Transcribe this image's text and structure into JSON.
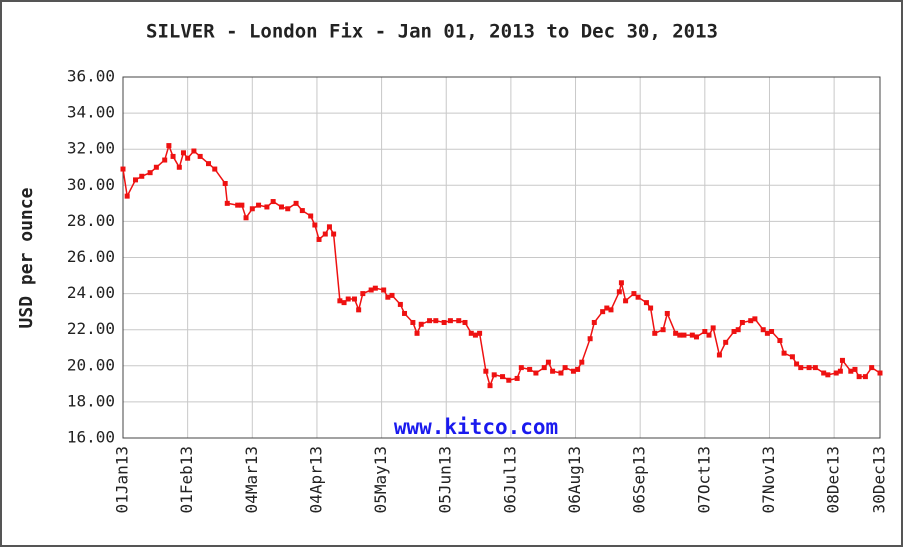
{
  "chart_data": {
    "type": "line",
    "title": "SILVER - London Fix - Jan 01, 2013 to Dec 30, 2013",
    "y_label": "USD per ounce",
    "annotation": "www.kitco.com",
    "grid": true,
    "xlim": [
      "2013-01-01",
      "2013-12-30"
    ],
    "xticks": [
      {
        "value": "2013-01-01",
        "label": "01Jan13"
      },
      {
        "value": "2013-02-01",
        "label": "01Feb13"
      },
      {
        "value": "2013-03-04",
        "label": "04Mar13"
      },
      {
        "value": "2013-04-04",
        "label": "04Apr13"
      },
      {
        "value": "2013-05-05",
        "label": "05May13"
      },
      {
        "value": "2013-06-05",
        "label": "05Jun13"
      },
      {
        "value": "2013-07-06",
        "label": "06Jul13"
      },
      {
        "value": "2013-08-06",
        "label": "06Aug13"
      },
      {
        "value": "2013-09-06",
        "label": "06Sep13"
      },
      {
        "value": "2013-10-07",
        "label": "07Oct13"
      },
      {
        "value": "2013-11-07",
        "label": "07Nov13"
      },
      {
        "value": "2013-12-08",
        "label": "08Dec13"
      },
      {
        "value": "2013-12-30",
        "label": "30Dec13"
      }
    ],
    "ylim": [
      16,
      36
    ],
    "yticks": [
      {
        "value": 16,
        "label": "16.00"
      },
      {
        "value": 18,
        "label": "18.00"
      },
      {
        "value": 20,
        "label": "20.00"
      },
      {
        "value": 22,
        "label": "22.00"
      },
      {
        "value": 24,
        "label": "24.00"
      },
      {
        "value": 26,
        "label": "26.00"
      },
      {
        "value": 28,
        "label": "28.00"
      },
      {
        "value": 30,
        "label": "30.00"
      },
      {
        "value": 32,
        "label": "32.00"
      },
      {
        "value": 34,
        "label": "34.00"
      },
      {
        "value": 36,
        "label": "36.00"
      }
    ],
    "x": [
      "2013-01-01",
      "2013-01-03",
      "2013-01-07",
      "2013-01-10",
      "2013-01-14",
      "2013-01-17",
      "2013-01-21",
      "2013-01-23",
      "2013-01-25",
      "2013-01-28",
      "2013-01-30",
      "2013-02-01",
      "2013-02-04",
      "2013-02-07",
      "2013-02-11",
      "2013-02-14",
      "2013-02-19",
      "2013-02-20",
      "2013-02-25",
      "2013-02-27",
      "2013-03-01",
      "2013-03-04",
      "2013-03-07",
      "2013-03-11",
      "2013-03-14",
      "2013-03-18",
      "2013-03-21",
      "2013-03-25",
      "2013-03-28",
      "2013-04-01",
      "2013-04-03",
      "2013-04-05",
      "2013-04-08",
      "2013-04-10",
      "2013-04-12",
      "2013-04-15",
      "2013-04-17",
      "2013-04-19",
      "2013-04-22",
      "2013-04-24",
      "2013-04-26",
      "2013-04-30",
      "2013-05-02",
      "2013-05-06",
      "2013-05-08",
      "2013-05-10",
      "2013-05-14",
      "2013-05-16",
      "2013-05-20",
      "2013-05-22",
      "2013-05-24",
      "2013-05-28",
      "2013-05-31",
      "2013-06-04",
      "2013-06-07",
      "2013-06-11",
      "2013-06-14",
      "2013-06-17",
      "2013-06-19",
      "2013-06-21",
      "2013-06-24",
      "2013-06-26",
      "2013-06-28",
      "2013-07-02",
      "2013-07-05",
      "2013-07-09",
      "2013-07-11",
      "2013-07-15",
      "2013-07-18",
      "2013-07-22",
      "2013-07-24",
      "2013-07-26",
      "2013-07-30",
      "2013-08-01",
      "2013-08-05",
      "2013-08-07",
      "2013-08-09",
      "2013-08-13",
      "2013-08-15",
      "2013-08-19",
      "2013-08-21",
      "2013-08-23",
      "2013-08-27",
      "2013-08-28",
      "2013-08-30",
      "2013-09-03",
      "2013-09-05",
      "2013-09-09",
      "2013-09-11",
      "2013-09-13",
      "2013-09-17",
      "2013-09-19",
      "2013-09-23",
      "2013-09-25",
      "2013-09-27",
      "2013-10-01",
      "2013-10-03",
      "2013-10-07",
      "2013-10-09",
      "2013-10-11",
      "2013-10-14",
      "2013-10-17",
      "2013-10-21",
      "2013-10-23",
      "2013-10-25",
      "2013-10-29",
      "2013-10-31",
      "2013-11-04",
      "2013-11-06",
      "2013-11-08",
      "2013-11-12",
      "2013-11-14",
      "2013-11-18",
      "2013-11-20",
      "2013-11-22",
      "2013-11-26",
      "2013-11-29",
      "2013-12-03",
      "2013-12-05",
      "2013-12-09",
      "2013-12-11",
      "2013-12-12",
      "2013-12-16",
      "2013-12-18",
      "2013-12-20",
      "2013-12-23",
      "2013-12-26",
      "2013-12-30"
    ],
    "series": [
      {
        "name": "SILVER",
        "color": "#ee1111",
        "values": [
          30.9,
          29.4,
          30.3,
          30.5,
          30.7,
          31.0,
          31.4,
          32.2,
          31.6,
          31.0,
          31.8,
          31.5,
          31.9,
          31.6,
          31.2,
          30.9,
          30.1,
          29.0,
          28.9,
          28.9,
          28.2,
          28.7,
          28.9,
          28.8,
          29.1,
          28.8,
          28.7,
          29.0,
          28.6,
          28.3,
          27.8,
          27.0,
          27.3,
          27.7,
          27.3,
          23.6,
          23.5,
          23.7,
          23.7,
          23.1,
          24.0,
          24.2,
          24.3,
          24.2,
          23.8,
          23.9,
          23.4,
          22.9,
          22.4,
          21.8,
          22.3,
          22.5,
          22.5,
          22.4,
          22.5,
          22.5,
          22.4,
          21.8,
          21.7,
          21.8,
          19.7,
          18.9,
          19.5,
          19.4,
          19.2,
          19.3,
          19.9,
          19.8,
          19.6,
          19.9,
          20.2,
          19.7,
          19.6,
          19.9,
          19.7,
          19.8,
          20.2,
          21.5,
          22.4,
          23.0,
          23.2,
          23.1,
          24.1,
          24.6,
          23.6,
          24.0,
          23.8,
          23.5,
          23.2,
          21.8,
          22.0,
          22.9,
          21.8,
          21.7,
          21.7,
          21.7,
          21.6,
          21.9,
          21.7,
          22.1,
          20.6,
          21.3,
          21.9,
          22.0,
          22.4,
          22.5,
          22.6,
          22.0,
          21.8,
          21.9,
          21.4,
          20.7,
          20.5,
          20.1,
          19.9,
          19.9,
          19.9,
          19.6,
          19.5,
          19.6,
          19.7,
          20.3,
          19.7,
          19.8,
          19.4,
          19.4,
          19.9,
          19.6
        ]
      }
    ]
  }
}
